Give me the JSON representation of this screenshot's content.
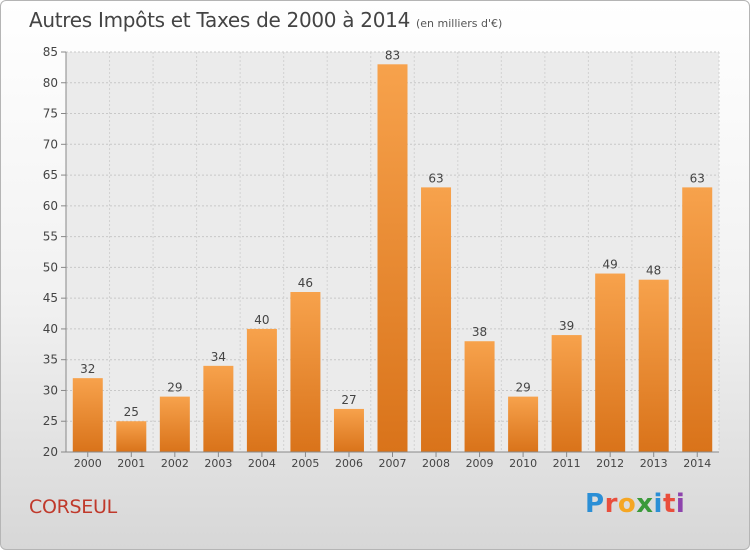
{
  "chart_data": {
    "type": "bar",
    "title": "Autres Impôts et Taxes de 2000 à 2014",
    "subtitle": "(en milliers d'€)",
    "categories": [
      "2000",
      "2001",
      "2002",
      "2003",
      "2004",
      "2005",
      "2006",
      "2007",
      "2008",
      "2009",
      "2010",
      "2011",
      "2012",
      "2013",
      "2014"
    ],
    "values": [
      32,
      25,
      29,
      34,
      40,
      46,
      27,
      83,
      63,
      38,
      29,
      39,
      49,
      48,
      63
    ],
    "ylim": [
      20,
      85
    ],
    "yticks": [
      20,
      25,
      30,
      35,
      40,
      45,
      50,
      55,
      60,
      65,
      70,
      75,
      80,
      85
    ],
    "grid": true,
    "bar_color": "#f0923a"
  },
  "footer": {
    "place": "CORSEUL",
    "logo_text": "Proxiti",
    "logo_colors": [
      "#2b8fd6",
      "#e94e3c",
      "#f5a623",
      "#3a9a3a",
      "#2b8fd6",
      "#e94e3c",
      "#8e44ad"
    ]
  }
}
